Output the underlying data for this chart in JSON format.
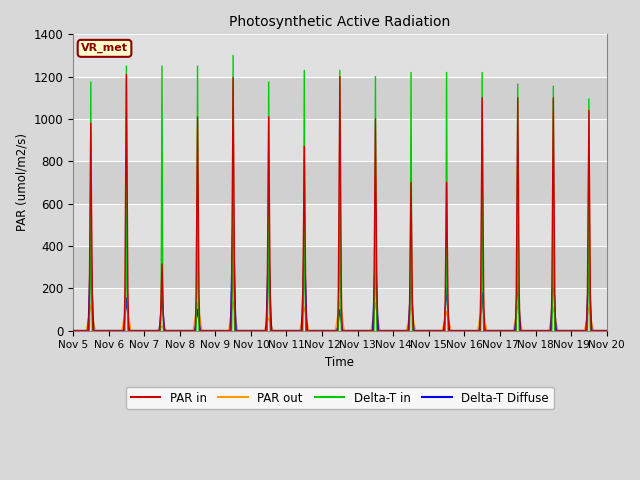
{
  "title": "Photosynthetic Active Radiation",
  "ylabel": "PAR (umol/m2/s)",
  "xlabel": "Time",
  "tag_label": "VR_met",
  "ylim": [
    0,
    1400
  ],
  "xlim": [
    0,
    360
  ],
  "background_color": "#d8d8d8",
  "plot_bg_color": "#d8d8d8",
  "grid_color": "#c0c0c0",
  "band_color_light": "#e8e8e8",
  "band_color_dark": "#d0d0d0",
  "colors": {
    "par_in": "#cc0000",
    "par_out": "#ff9900",
    "delta_t_in": "#00cc00",
    "delta_t_diffuse": "#0000ee"
  },
  "legend_labels": [
    "PAR in",
    "PAR out",
    "Delta-T in",
    "Delta-T Diffuse"
  ],
  "xtick_labels": [
    "Nov 5",
    "Nov 6",
    "Nov 7",
    "Nov 8",
    "Nov 9",
    "Nov 10",
    "Nov 11",
    "Nov 12",
    "Nov 13",
    "Nov 14",
    "Nov 15",
    "Nov 16",
    "Nov 17",
    "Nov 18",
    "Nov 19",
    "Nov 20"
  ],
  "xtick_positions": [
    0,
    24,
    48,
    72,
    96,
    120,
    144,
    168,
    192,
    216,
    240,
    264,
    288,
    312,
    336,
    360
  ]
}
